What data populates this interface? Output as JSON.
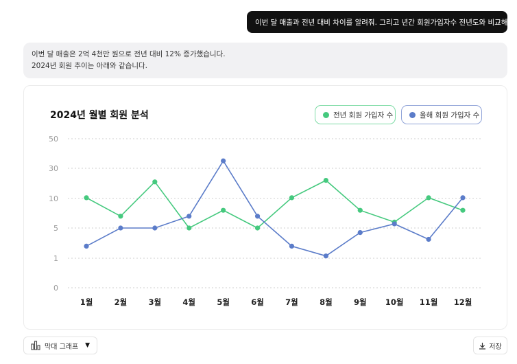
{
  "user_message": "이번 달 매출과 전년 대비 차이를 알려줘. 그리고 년간 회원가입자수 전년도와 비교해줘",
  "answer": {
    "line1": "이번 달 매출은 2억 4천만 원으로 전년 대비 12% 증가했습니다.",
    "line2": "2024년 회원 추이는 아래와 같습니다."
  },
  "controls": {
    "chart_type_label": "막대 그래프",
    "save_label": "저장"
  },
  "colors": {
    "prev_series": "#45c97e",
    "curr_series": "#5b7cc9",
    "grid": "#cfcfcf"
  },
  "chart_data": {
    "type": "line",
    "title": "2024년 월별 회원 분석",
    "categories": [
      "1월",
      "2월",
      "3월",
      "4월",
      "5월",
      "6월",
      "7월",
      "8월",
      "9월",
      "10월",
      "11월",
      "12월"
    ],
    "y_ticks": [
      "50",
      "30",
      "10",
      "5",
      "1",
      "0"
    ],
    "y_scale": "categorical-band (ticks 0, 1, 5, 10, 30, 50)",
    "grid": true,
    "legend_position": "top-right",
    "series": [
      {
        "name": "전년 회원 가입자 수",
        "values": [
          10.5,
          7,
          21,
          5,
          8,
          5,
          10.5,
          22,
          8,
          6,
          10.5,
          8
        ]
      },
      {
        "name": "올해 회원 가입자 수",
        "values": [
          2.6,
          5,
          5,
          7,
          35,
          7,
          2.6,
          1.3,
          4.4,
          5.7,
          3.5,
          10.5
        ]
      }
    ]
  }
}
